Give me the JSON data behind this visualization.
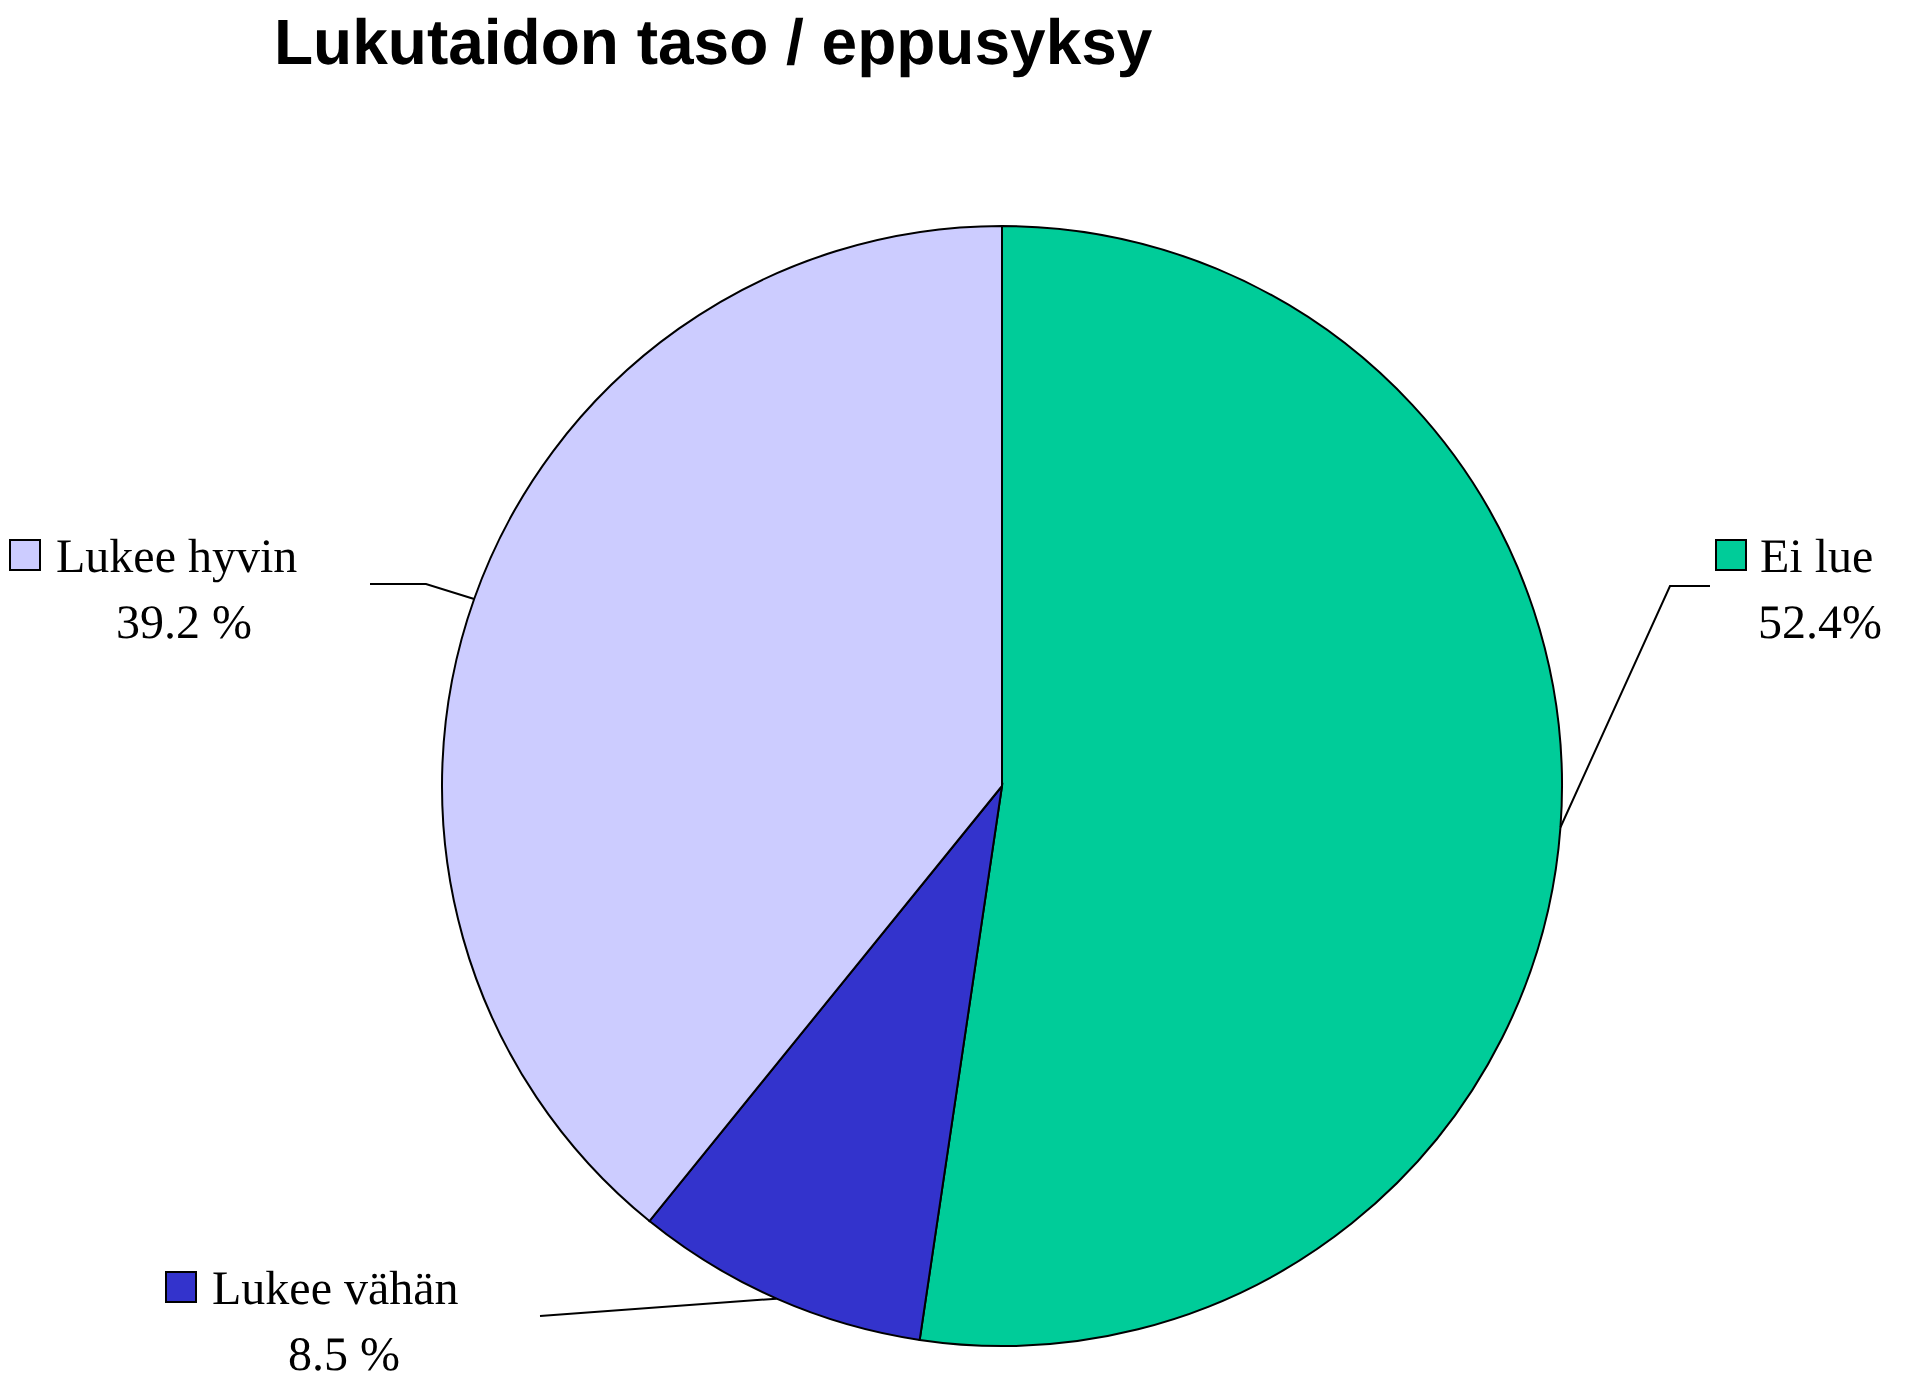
{
  "chart_data": {
    "type": "pie",
    "title": "Lukutaidon taso / eppusyksy",
    "categories": [
      "Ei lue",
      "Lukee vähän",
      "Lukee hyvin"
    ],
    "values": [
      52.4,
      8.5,
      39.2
    ],
    "value_labels": [
      "52.4%",
      "8.5 %",
      "39.2 %"
    ],
    "colors": [
      "#00cc99",
      "#3333cc",
      "#ccccff"
    ],
    "legend": "left"
  }
}
